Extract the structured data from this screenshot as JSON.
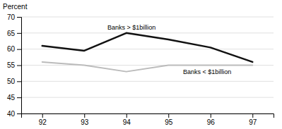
{
  "chart_data": {
    "type": "line",
    "ylabel": "Percent",
    "x": [
      92,
      93,
      94,
      95,
      96,
      97
    ],
    "series": [
      {
        "color": "#111111",
        "values": [
          61,
          59.5,
          65,
          63,
          60.5,
          56
        ]
      },
      {
        "color": "#bbbbbb",
        "values": [
          56,
          55,
          53,
          55,
          55,
          55
        ]
      }
    ],
    "annotations": [
      {
        "text": "Banks > $1billion",
        "x": 93.55,
        "y": 66.0
      },
      {
        "text": "Banks < $1billion",
        "x": 95.35,
        "y": 52.2
      }
    ],
    "xlim": [
      91.5,
      97.5
    ],
    "xticks": [
      92,
      93,
      94,
      95,
      96,
      97
    ],
    "ylim": [
      40,
      70
    ],
    "yticks": [
      40,
      45,
      50,
      55,
      60,
      65,
      70
    ],
    "grid": true
  }
}
